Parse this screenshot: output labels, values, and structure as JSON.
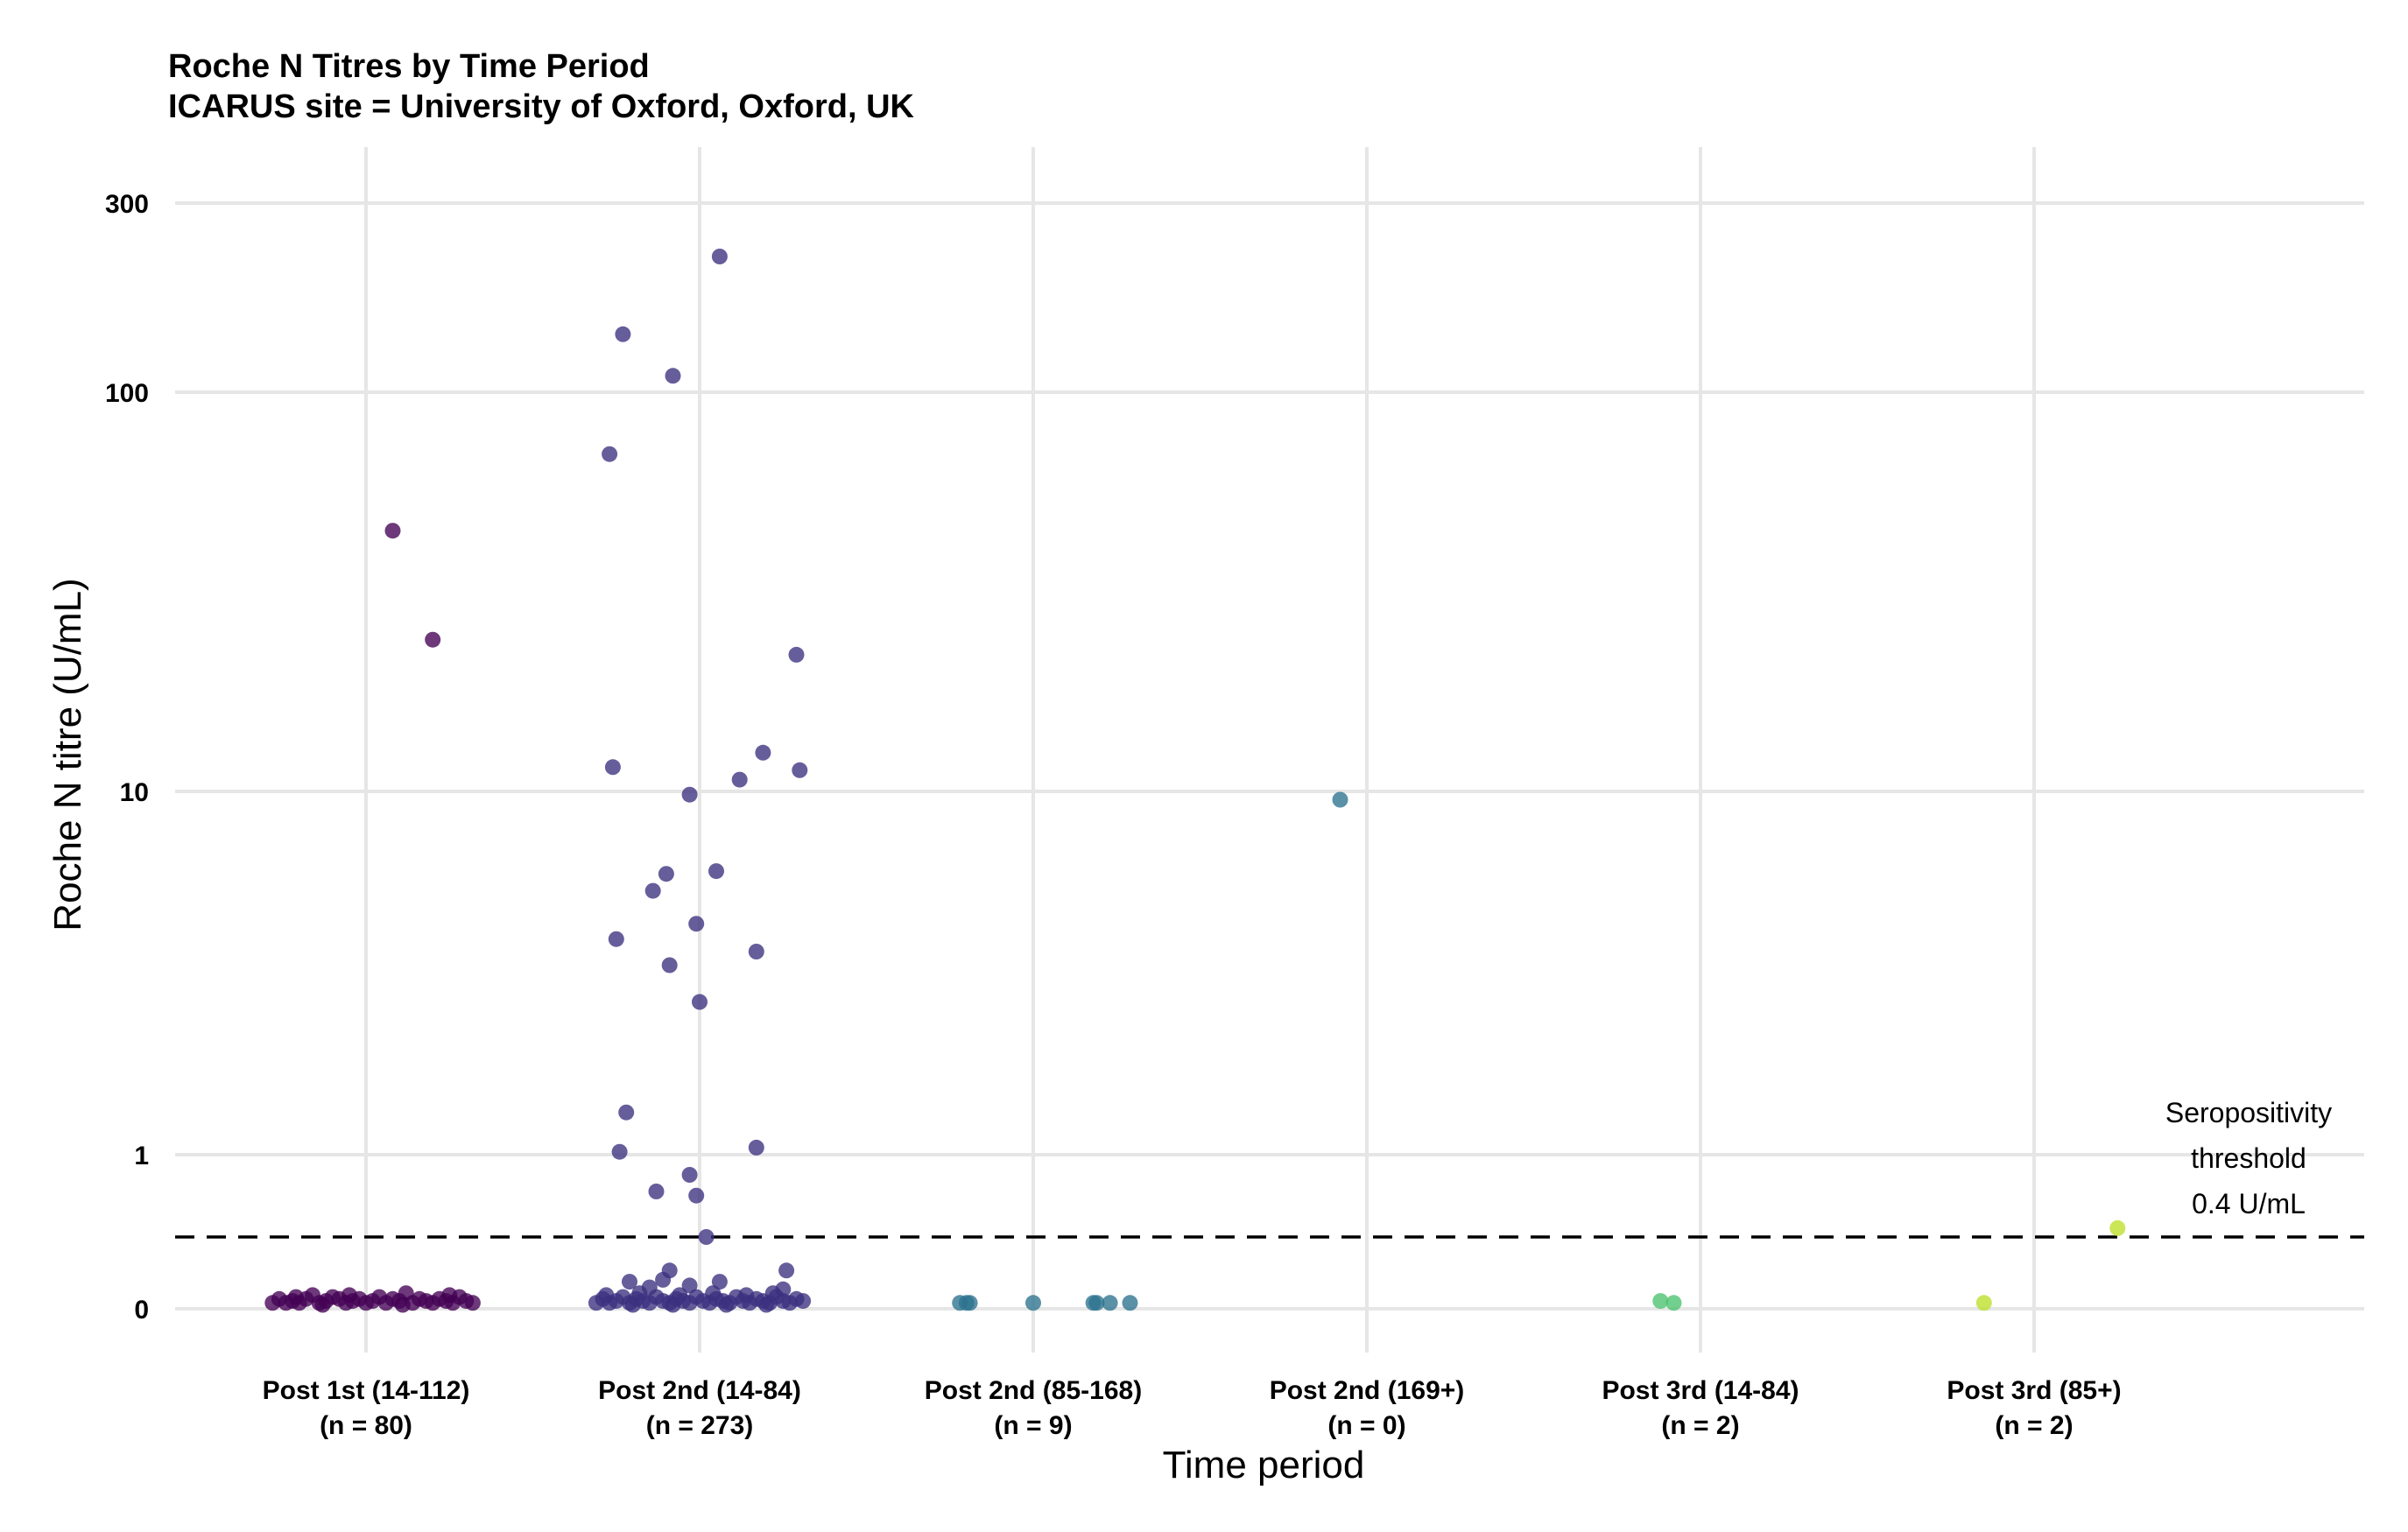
{
  "chart_data": {
    "type": "scatter",
    "title": "Roche N Titres by Time Period",
    "subtitle": "ICARUS site = University of Oxford, Oxford, UK",
    "xlabel": "Time period",
    "ylabel": "Roche N titre (U/mL)",
    "y_scale": "pseudo-log",
    "y_ticks": [
      "0",
      "1",
      "10",
      "100",
      "300"
    ],
    "grid": true,
    "legend": "none",
    "categories": [
      {
        "label": "Post 1st (14-112)",
        "n_label": "(n = 80)",
        "color": "#440154"
      },
      {
        "label": "Post 2nd (14-84)",
        "n_label": "(n = 273)",
        "color": "#3b2f7f"
      },
      {
        "label": "Post 2nd (85-168)",
        "n_label": "(n = 9)",
        "color": "#2c728e"
      },
      {
        "label": "Post 2nd (169+)",
        "n_label": "(n = 0)",
        "color": "#21908c"
      },
      {
        "label": "Post 3rd (14-84)",
        "n_label": "(n = 2)",
        "color": "#4ac16d"
      },
      {
        "label": "Post 3rd (85+)",
        "n_label": "(n = 2)",
        "color": "#bddf26"
      }
    ],
    "threshold": {
      "value": 0.4,
      "style": "dashed",
      "label_lines": [
        "Seropositivity",
        "threshold",
        "0.4 U/mL"
      ]
    },
    "points": [
      {
        "c": 0,
        "x": 0.08,
        "y": 45
      },
      {
        "c": 0,
        "x": 0.2,
        "y": 24
      },
      {
        "c": 0,
        "x": -0.28,
        "y": 0.03
      },
      {
        "c": 0,
        "x": -0.26,
        "y": 0.05
      },
      {
        "c": 0,
        "x": -0.24,
        "y": 0.03
      },
      {
        "c": 0,
        "x": -0.22,
        "y": 0.04
      },
      {
        "c": 0,
        "x": -0.2,
        "y": 0.03
      },
      {
        "c": 0,
        "x": -0.18,
        "y": 0.05
      },
      {
        "c": 0,
        "x": -0.16,
        "y": 0.07
      },
      {
        "c": 0,
        "x": -0.14,
        "y": 0.03
      },
      {
        "c": 0,
        "x": -0.12,
        "y": 0.04
      },
      {
        "c": 0,
        "x": -0.1,
        "y": 0.06
      },
      {
        "c": 0,
        "x": -0.08,
        "y": 0.05
      },
      {
        "c": 0,
        "x": -0.06,
        "y": 0.03
      },
      {
        "c": 0,
        "x": -0.04,
        "y": 0.04
      },
      {
        "c": 0,
        "x": -0.02,
        "y": 0.05
      },
      {
        "c": 0,
        "x": 0.0,
        "y": 0.03
      },
      {
        "c": 0,
        "x": 0.02,
        "y": 0.04
      },
      {
        "c": 0,
        "x": 0.04,
        "y": 0.06
      },
      {
        "c": 0,
        "x": 0.06,
        "y": 0.03
      },
      {
        "c": 0,
        "x": 0.08,
        "y": 0.05
      },
      {
        "c": 0,
        "x": 0.1,
        "y": 0.04
      },
      {
        "c": 0,
        "x": 0.12,
        "y": 0.08
      },
      {
        "c": 0,
        "x": 0.14,
        "y": 0.03
      },
      {
        "c": 0,
        "x": 0.16,
        "y": 0.05
      },
      {
        "c": 0,
        "x": 0.18,
        "y": 0.04
      },
      {
        "c": 0,
        "x": 0.2,
        "y": 0.03
      },
      {
        "c": 0,
        "x": 0.22,
        "y": 0.05
      },
      {
        "c": 0,
        "x": 0.24,
        "y": 0.04
      },
      {
        "c": 0,
        "x": 0.26,
        "y": 0.03
      },
      {
        "c": 0,
        "x": 0.28,
        "y": 0.06
      },
      {
        "c": 0,
        "x": 0.3,
        "y": 0.04
      },
      {
        "c": 0,
        "x": 0.32,
        "y": 0.03
      },
      {
        "c": 0,
        "x": -0.21,
        "y": 0.06
      },
      {
        "c": 0,
        "x": -0.05,
        "y": 0.07
      },
      {
        "c": 0,
        "x": 0.25,
        "y": 0.07
      },
      {
        "c": 0,
        "x": -0.13,
        "y": 0.02
      },
      {
        "c": 0,
        "x": 0.11,
        "y": 0.02
      },
      {
        "c": 1,
        "x": 0.06,
        "y": 220
      },
      {
        "c": 1,
        "x": -0.23,
        "y": 140
      },
      {
        "c": 1,
        "x": -0.08,
        "y": 110
      },
      {
        "c": 1,
        "x": -0.27,
        "y": 70
      },
      {
        "c": 1,
        "x": 0.29,
        "y": 22
      },
      {
        "c": 1,
        "x": 0.19,
        "y": 12.5
      },
      {
        "c": 1,
        "x": -0.26,
        "y": 11.5
      },
      {
        "c": 1,
        "x": 0.3,
        "y": 11.3
      },
      {
        "c": 1,
        "x": 0.12,
        "y": 10.7
      },
      {
        "c": 1,
        "x": -0.03,
        "y": 9.8
      },
      {
        "c": 1,
        "x": -0.1,
        "y": 6.0
      },
      {
        "c": 1,
        "x": 0.05,
        "y": 6.1
      },
      {
        "c": 1,
        "x": -0.14,
        "y": 5.4
      },
      {
        "c": 1,
        "x": -0.01,
        "y": 4.4
      },
      {
        "c": 1,
        "x": -0.25,
        "y": 4.0
      },
      {
        "c": 1,
        "x": 0.17,
        "y": 3.7
      },
      {
        "c": 1,
        "x": -0.09,
        "y": 3.4
      },
      {
        "c": 1,
        "x": 0.0,
        "y": 2.7
      },
      {
        "c": 1,
        "x": -0.22,
        "y": 1.33
      },
      {
        "c": 1,
        "x": -0.24,
        "y": 1.02
      },
      {
        "c": 1,
        "x": 0.17,
        "y": 1.05
      },
      {
        "c": 1,
        "x": -0.03,
        "y": 0.82
      },
      {
        "c": 1,
        "x": -0.13,
        "y": 0.69
      },
      {
        "c": 1,
        "x": -0.01,
        "y": 0.66
      },
      {
        "c": 1,
        "x": 0.02,
        "y": 0.4
      },
      {
        "c": 1,
        "x": 0.26,
        "y": 0.2
      },
      {
        "c": 1,
        "x": -0.09,
        "y": 0.2
      },
      {
        "c": 1,
        "x": -0.21,
        "y": 0.14
      },
      {
        "c": 1,
        "x": -0.11,
        "y": 0.15
      },
      {
        "c": 1,
        "x": 0.06,
        "y": 0.14
      },
      {
        "c": 1,
        "x": -0.03,
        "y": 0.12
      },
      {
        "c": 1,
        "x": 0.25,
        "y": 0.1
      },
      {
        "c": 1,
        "x": -0.15,
        "y": 0.11
      },
      {
        "c": 1,
        "x": -0.31,
        "y": 0.03
      },
      {
        "c": 1,
        "x": -0.29,
        "y": 0.05
      },
      {
        "c": 1,
        "x": -0.27,
        "y": 0.03
      },
      {
        "c": 1,
        "x": -0.25,
        "y": 0.04
      },
      {
        "c": 1,
        "x": -0.23,
        "y": 0.06
      },
      {
        "c": 1,
        "x": -0.21,
        "y": 0.03
      },
      {
        "c": 1,
        "x": -0.19,
        "y": 0.05
      },
      {
        "c": 1,
        "x": -0.17,
        "y": 0.04
      },
      {
        "c": 1,
        "x": -0.15,
        "y": 0.03
      },
      {
        "c": 1,
        "x": -0.13,
        "y": 0.06
      },
      {
        "c": 1,
        "x": -0.11,
        "y": 0.04
      },
      {
        "c": 1,
        "x": -0.09,
        "y": 0.03
      },
      {
        "c": 1,
        "x": -0.07,
        "y": 0.05
      },
      {
        "c": 1,
        "x": -0.05,
        "y": 0.04
      },
      {
        "c": 1,
        "x": -0.03,
        "y": 0.03
      },
      {
        "c": 1,
        "x": -0.01,
        "y": 0.06
      },
      {
        "c": 1,
        "x": 0.01,
        "y": 0.04
      },
      {
        "c": 1,
        "x": 0.03,
        "y": 0.03
      },
      {
        "c": 1,
        "x": 0.05,
        "y": 0.05
      },
      {
        "c": 1,
        "x": 0.07,
        "y": 0.04
      },
      {
        "c": 1,
        "x": 0.09,
        "y": 0.03
      },
      {
        "c": 1,
        "x": 0.11,
        "y": 0.06
      },
      {
        "c": 1,
        "x": 0.13,
        "y": 0.04
      },
      {
        "c": 1,
        "x": 0.15,
        "y": 0.03
      },
      {
        "c": 1,
        "x": 0.17,
        "y": 0.05
      },
      {
        "c": 1,
        "x": 0.19,
        "y": 0.04
      },
      {
        "c": 1,
        "x": 0.21,
        "y": 0.03
      },
      {
        "c": 1,
        "x": 0.23,
        "y": 0.06
      },
      {
        "c": 1,
        "x": 0.25,
        "y": 0.04
      },
      {
        "c": 1,
        "x": 0.27,
        "y": 0.03
      },
      {
        "c": 1,
        "x": 0.29,
        "y": 0.05
      },
      {
        "c": 1,
        "x": 0.31,
        "y": 0.04
      },
      {
        "c": 1,
        "x": -0.28,
        "y": 0.07
      },
      {
        "c": 1,
        "x": -0.18,
        "y": 0.08
      },
      {
        "c": 1,
        "x": -0.06,
        "y": 0.07
      },
      {
        "c": 1,
        "x": 0.04,
        "y": 0.08
      },
      {
        "c": 1,
        "x": 0.14,
        "y": 0.07
      },
      {
        "c": 1,
        "x": 0.22,
        "y": 0.08
      },
      {
        "c": 1,
        "x": -0.2,
        "y": 0.02
      },
      {
        "c": 1,
        "x": -0.08,
        "y": 0.02
      },
      {
        "c": 1,
        "x": 0.08,
        "y": 0.02
      },
      {
        "c": 1,
        "x": 0.2,
        "y": 0.02
      },
      {
        "c": 2,
        "x": 0.92,
        "y": 9.5
      },
      {
        "c": 2,
        "x": -0.22,
        "y": 0.03
      },
      {
        "c": 2,
        "x": -0.2,
        "y": 0.03
      },
      {
        "c": 2,
        "x": -0.19,
        "y": 0.03
      },
      {
        "c": 2,
        "x": 0.0,
        "y": 0.03
      },
      {
        "c": 2,
        "x": 0.18,
        "y": 0.03
      },
      {
        "c": 2,
        "x": 0.19,
        "y": 0.03
      },
      {
        "c": 2,
        "x": 0.23,
        "y": 0.03
      },
      {
        "c": 2,
        "x": 0.29,
        "y": 0.03
      },
      {
        "c": 4,
        "x": -0.12,
        "y": 0.04
      },
      {
        "c": 4,
        "x": -0.08,
        "y": 0.03
      },
      {
        "c": 5,
        "x": -0.15,
        "y": 0.03
      },
      {
        "c": 5,
        "x": 0.25,
        "y": 0.45
      }
    ]
  }
}
